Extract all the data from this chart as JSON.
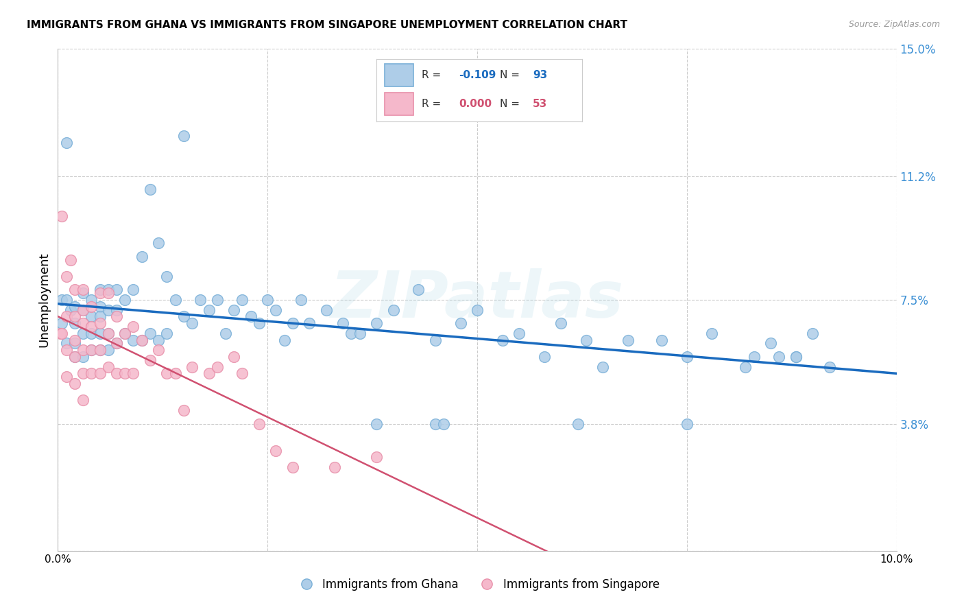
{
  "title": "IMMIGRANTS FROM GHANA VS IMMIGRANTS FROM SINGAPORE UNEMPLOYMENT CORRELATION CHART",
  "source": "Source: ZipAtlas.com",
  "ylabel": "Unemployment",
  "x_min": 0.0,
  "x_max": 0.1,
  "y_min": 0.0,
  "y_max": 0.15,
  "y_ticks": [
    0.0,
    0.038,
    0.075,
    0.112,
    0.15
  ],
  "y_tick_labels": [
    "",
    "3.8%",
    "7.5%",
    "11.2%",
    "15.0%"
  ],
  "x_ticks": [
    0.0,
    0.025,
    0.05,
    0.075,
    0.1
  ],
  "x_tick_labels": [
    "0.0%",
    "",
    "",
    "",
    "10.0%"
  ],
  "ghana_R": "-0.109",
  "ghana_N": "93",
  "singapore_R": "0.000",
  "singapore_N": "53",
  "ghana_face_color": "#aecde8",
  "singapore_face_color": "#f5b8cb",
  "ghana_edge_color": "#7ab0d8",
  "singapore_edge_color": "#e890aa",
  "ghana_line_color": "#1a6bbf",
  "singapore_line_color": "#d05070",
  "watermark": "ZIPatlas",
  "bottom_legend_ghana": "Immigrants from Ghana",
  "bottom_legend_singapore": "Immigrants from Singapore",
  "ghana_x": [
    0.0005,
    0.0005,
    0.001,
    0.001,
    0.001,
    0.0015,
    0.002,
    0.002,
    0.002,
    0.002,
    0.003,
    0.003,
    0.003,
    0.003,
    0.004,
    0.004,
    0.004,
    0.004,
    0.005,
    0.005,
    0.005,
    0.005,
    0.005,
    0.006,
    0.006,
    0.006,
    0.006,
    0.007,
    0.007,
    0.007,
    0.008,
    0.008,
    0.009,
    0.009,
    0.01,
    0.01,
    0.011,
    0.011,
    0.012,
    0.012,
    0.013,
    0.013,
    0.014,
    0.015,
    0.015,
    0.016,
    0.017,
    0.018,
    0.019,
    0.02,
    0.021,
    0.022,
    0.023,
    0.024,
    0.025,
    0.026,
    0.027,
    0.028,
    0.029,
    0.03,
    0.032,
    0.034,
    0.035,
    0.036,
    0.038,
    0.04,
    0.043,
    0.045,
    0.048,
    0.05,
    0.053,
    0.055,
    0.058,
    0.06,
    0.063,
    0.065,
    0.068,
    0.072,
    0.075,
    0.078,
    0.082,
    0.085,
    0.088,
    0.09,
    0.092,
    0.083,
    0.086,
    0.088,
    0.075,
    0.062,
    0.045,
    0.046,
    0.038
  ],
  "ghana_y": [
    0.075,
    0.068,
    0.122,
    0.075,
    0.062,
    0.072,
    0.073,
    0.068,
    0.062,
    0.058,
    0.077,
    0.072,
    0.065,
    0.058,
    0.075,
    0.07,
    0.065,
    0.06,
    0.078,
    0.073,
    0.07,
    0.065,
    0.06,
    0.078,
    0.072,
    0.065,
    0.06,
    0.078,
    0.072,
    0.062,
    0.075,
    0.065,
    0.078,
    0.063,
    0.088,
    0.063,
    0.108,
    0.065,
    0.092,
    0.063,
    0.082,
    0.065,
    0.075,
    0.124,
    0.07,
    0.068,
    0.075,
    0.072,
    0.075,
    0.065,
    0.072,
    0.075,
    0.07,
    0.068,
    0.075,
    0.072,
    0.063,
    0.068,
    0.075,
    0.068,
    0.072,
    0.068,
    0.065,
    0.065,
    0.068,
    0.072,
    0.078,
    0.063,
    0.068,
    0.072,
    0.063,
    0.065,
    0.058,
    0.068,
    0.063,
    0.055,
    0.063,
    0.063,
    0.058,
    0.065,
    0.055,
    0.062,
    0.058,
    0.065,
    0.055,
    0.058,
    0.058,
    0.058,
    0.038,
    0.038,
    0.038,
    0.038,
    0.038
  ],
  "singapore_x": [
    0.0003,
    0.0005,
    0.0005,
    0.001,
    0.001,
    0.001,
    0.001,
    0.0015,
    0.002,
    0.002,
    0.002,
    0.002,
    0.002,
    0.003,
    0.003,
    0.003,
    0.003,
    0.003,
    0.003,
    0.004,
    0.004,
    0.004,
    0.004,
    0.005,
    0.005,
    0.005,
    0.005,
    0.006,
    0.006,
    0.006,
    0.007,
    0.007,
    0.007,
    0.008,
    0.008,
    0.009,
    0.009,
    0.01,
    0.011,
    0.012,
    0.013,
    0.014,
    0.015,
    0.016,
    0.018,
    0.019,
    0.021,
    0.022,
    0.024,
    0.026,
    0.028,
    0.033,
    0.038
  ],
  "singapore_y": [
    0.065,
    0.1,
    0.065,
    0.082,
    0.07,
    0.06,
    0.052,
    0.087,
    0.078,
    0.07,
    0.063,
    0.058,
    0.05,
    0.078,
    0.072,
    0.068,
    0.06,
    0.053,
    0.045,
    0.073,
    0.067,
    0.06,
    0.053,
    0.077,
    0.068,
    0.06,
    0.053,
    0.077,
    0.065,
    0.055,
    0.07,
    0.062,
    0.053,
    0.065,
    0.053,
    0.067,
    0.053,
    0.063,
    0.057,
    0.06,
    0.053,
    0.053,
    0.042,
    0.055,
    0.053,
    0.055,
    0.058,
    0.053,
    0.038,
    0.03,
    0.025,
    0.025,
    0.028
  ]
}
